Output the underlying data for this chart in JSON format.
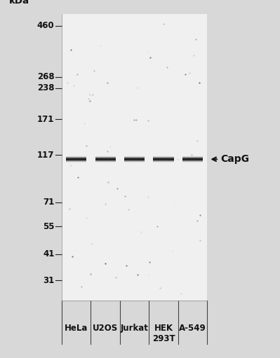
{
  "bg_color": "#d8d8d8",
  "blot_bg": "#f0f0f0",
  "fig_width": 3.99,
  "fig_height": 5.11,
  "mw_labels": [
    "kDa",
    "460",
    "268",
    "238",
    "171",
    "117",
    "71",
    "55",
    "41",
    "31"
  ],
  "mw_log_vals": [
    999,
    460,
    268,
    238,
    171,
    117,
    71,
    55,
    41,
    31
  ],
  "band_kda": 112,
  "lane_labels": [
    "HeLa",
    "U2OS",
    "Jurkat",
    "HEK\n293T",
    "A-549"
  ],
  "band_label": "CapG",
  "noise_seed": 42,
  "tick_fontsize": 8.5,
  "label_fontsize": 9.5,
  "band_fontsize": 10
}
